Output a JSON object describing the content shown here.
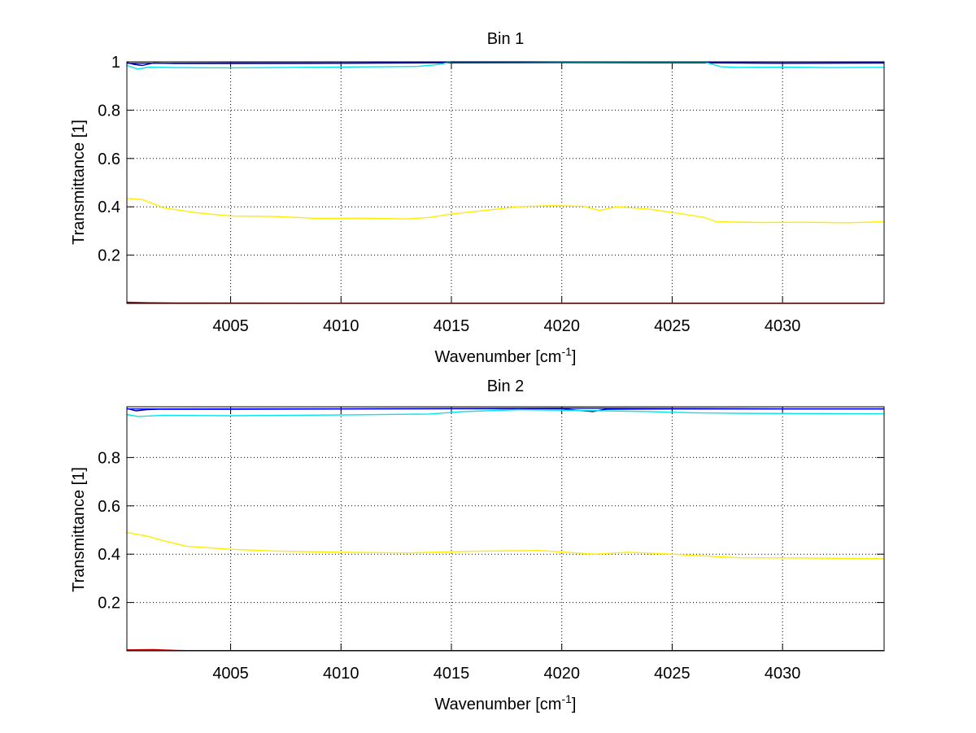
{
  "chart_data": [
    {
      "type": "line",
      "title": "Bin 1",
      "xlabel": "Wavenumber [cm",
      "xlabel_sup": "-1",
      "xlabel_end": "]",
      "ylabel": "Transmittance [1]",
      "xlim": [
        4000.3,
        4034.6
      ],
      "ylim": [
        0.0,
        1.0
      ],
      "xticks": [
        4005,
        4010,
        4015,
        4020,
        4025,
        4030
      ],
      "yticks": [
        0.2,
        0.4,
        0.6,
        0.8,
        1
      ],
      "xtick_labels": [
        "4005",
        "4010",
        "4015",
        "4020",
        "4025",
        "4030"
      ],
      "ytick_labels": [
        "0.2",
        "0.4",
        "0.6",
        "0.8",
        "1"
      ],
      "grid": true,
      "series": [
        {
          "name": "navy",
          "color": "#000080",
          "points": [
            [
              4000.3,
              0.997
            ],
            [
              4000.6,
              0.99
            ],
            [
              4001.0,
              0.985
            ],
            [
              4001.5,
              0.995
            ],
            [
              4002.5,
              0.993
            ],
            [
              4005,
              0.993
            ],
            [
              4010,
              0.994
            ],
            [
              4015,
              0.996
            ],
            [
              4020,
              0.997
            ],
            [
              4025,
              0.996
            ],
            [
              4030,
              0.994
            ],
            [
              4034.6,
              0.995
            ]
          ]
        },
        {
          "name": "blue",
          "color": "#0000ff",
          "points": [
            [
              4000.3,
              0.994
            ],
            [
              4005,
              0.995
            ],
            [
              4010,
              0.995
            ],
            [
              4015,
              0.997
            ],
            [
              4020,
              0.998
            ],
            [
              4025,
              0.997
            ],
            [
              4030,
              0.995
            ],
            [
              4034.6,
              0.996
            ]
          ]
        },
        {
          "name": "cyan",
          "color": "#00e5ee",
          "points": [
            [
              4000.3,
              0.985
            ],
            [
              4000.8,
              0.97
            ],
            [
              4001.3,
              0.978
            ],
            [
              4002.5,
              0.976
            ],
            [
              4005,
              0.975
            ],
            [
              4008,
              0.977
            ],
            [
              4011,
              0.979
            ],
            [
              4013.5,
              0.981
            ],
            [
              4014.5,
              0.99
            ],
            [
              4015.0,
              1.0
            ],
            [
              4018,
              1.0
            ],
            [
              4021,
              0.999
            ],
            [
              4024,
              0.999
            ],
            [
              4026.5,
              0.998
            ],
            [
              4027.2,
              0.98
            ],
            [
              4028,
              0.977
            ],
            [
              4030,
              0.978
            ],
            [
              4032,
              0.976
            ],
            [
              4034.6,
              0.977
            ]
          ]
        },
        {
          "name": "yellow",
          "color": "#ffee00",
          "points": [
            [
              4000.3,
              0.435
            ],
            [
              4001.0,
              0.43
            ],
            [
              4002.0,
              0.395
            ],
            [
              4003.5,
              0.375
            ],
            [
              4005,
              0.362
            ],
            [
              4007,
              0.36
            ],
            [
              4009,
              0.352
            ],
            [
              4011,
              0.353
            ],
            [
              4013,
              0.35
            ],
            [
              4014.0,
              0.356
            ],
            [
              4015.0,
              0.37
            ],
            [
              4016.5,
              0.385
            ],
            [
              4018,
              0.4
            ],
            [
              4019.5,
              0.405
            ],
            [
              4021,
              0.402
            ],
            [
              4021.7,
              0.385
            ],
            [
              4022.5,
              0.4
            ],
            [
              4024,
              0.39
            ],
            [
              4025.5,
              0.37
            ],
            [
              4026.5,
              0.355
            ],
            [
              4027.0,
              0.338
            ],
            [
              4029,
              0.335
            ],
            [
              4031,
              0.336
            ],
            [
              4033,
              0.334
            ],
            [
              4034.6,
              0.338
            ]
          ]
        },
        {
          "name": "red",
          "color": "#cc0000",
          "points": [
            [
              4000.3,
              0.005
            ],
            [
              4001.2,
              0.003
            ],
            [
              4002.5,
              0.002
            ],
            [
              4010,
              0.001
            ],
            [
              4020,
              0.001
            ],
            [
              4034.6,
              0.001
            ]
          ]
        },
        {
          "name": "dark-red",
          "color": "#800000",
          "points": [
            [
              4000.3,
              0.001
            ],
            [
              4034.6,
              0.001
            ]
          ]
        }
      ]
    },
    {
      "type": "line",
      "title": "Bin 2",
      "xlabel": "Wavenumber [cm",
      "xlabel_sup": "-1",
      "xlabel_end": "]",
      "ylabel": "Transmittance [1]",
      "xlim": [
        4000.3,
        4034.6
      ],
      "ylim": [
        0.0,
        1.01
      ],
      "xticks": [
        4005,
        4010,
        4015,
        4020,
        4025,
        4030
      ],
      "yticks": [
        0.2,
        0.4,
        0.6,
        0.8
      ],
      "xtick_labels": [
        "4005",
        "4010",
        "4015",
        "4020",
        "4025",
        "4030"
      ],
      "ytick_labels": [
        "0.2",
        "0.4",
        "0.6",
        "0.8"
      ],
      "grid": true,
      "series": [
        {
          "name": "navy",
          "color": "#000080",
          "points": [
            [
              4000.3,
              1.003
            ],
            [
              4000.7,
              0.993
            ],
            [
              4001.2,
              0.998
            ],
            [
              4001.7,
              1.0
            ],
            [
              4005,
              1.0
            ],
            [
              4010,
              1.001
            ],
            [
              4015,
              1.002
            ],
            [
              4020,
              1.002
            ],
            [
              4021.4,
              0.99
            ],
            [
              4022,
              1.0
            ],
            [
              4025,
              1.001
            ],
            [
              4030,
              1.001
            ],
            [
              4034.6,
              1.001
            ]
          ]
        },
        {
          "name": "blue",
          "color": "#0000ff",
          "points": [
            [
              4000.3,
              1.001
            ],
            [
              4010,
              1.002
            ],
            [
              4020,
              1.004
            ],
            [
              4030,
              1.002
            ],
            [
              4034.6,
              1.002
            ]
          ]
        },
        {
          "name": "cyan",
          "color": "#00e5ee",
          "points": [
            [
              4000.3,
              0.978
            ],
            [
              4000.8,
              0.97
            ],
            [
              4002,
              0.975
            ],
            [
              4005,
              0.973
            ],
            [
              4008,
              0.975
            ],
            [
              4011,
              0.977
            ],
            [
              4014,
              0.98
            ],
            [
              4015.5,
              0.99
            ],
            [
              4018,
              0.998
            ],
            [
              4021,
              0.995
            ],
            [
              4024,
              0.99
            ],
            [
              4026,
              0.985
            ],
            [
              4028,
              0.983
            ],
            [
              4031,
              0.982
            ],
            [
              4034.6,
              0.981
            ]
          ]
        },
        {
          "name": "yellow",
          "color": "#ffee00",
          "points": [
            [
              4000.3,
              0.49
            ],
            [
              4001.2,
              0.475
            ],
            [
              4002.0,
              0.455
            ],
            [
              4003,
              0.433
            ],
            [
              4005,
              0.42
            ],
            [
              4007,
              0.413
            ],
            [
              4010,
              0.408
            ],
            [
              4013,
              0.405
            ],
            [
              4016,
              0.412
            ],
            [
              4019,
              0.415
            ],
            [
              4021.5,
              0.4
            ],
            [
              4023,
              0.408
            ],
            [
              4025,
              0.4
            ],
            [
              4028,
              0.385
            ],
            [
              4031,
              0.384
            ],
            [
              4034.6,
              0.381
            ]
          ]
        },
        {
          "name": "red",
          "color": "#cc0000",
          "points": [
            [
              4000.3,
              0.004
            ],
            [
              4001.5,
              0.005
            ],
            [
              4002.5,
              0.002
            ],
            [
              4003,
              0.001
            ],
            [
              4034.6,
              0.001
            ]
          ]
        },
        {
          "name": "dark-red",
          "color": "#800000",
          "points": [
            [
              4000.3,
              0.001
            ],
            [
              4034.6,
              0.001
            ]
          ]
        }
      ]
    }
  ]
}
